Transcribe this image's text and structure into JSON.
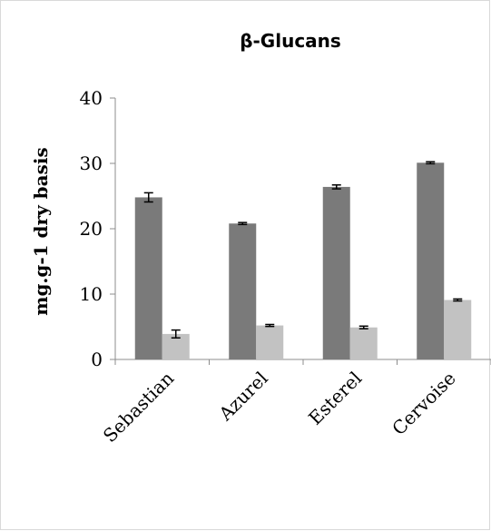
{
  "chart_data": {
    "type": "bar",
    "title": "β-Glucans",
    "xlabel": "",
    "ylabel": "mg.g-1 dry basis",
    "ylim": [
      0,
      40
    ],
    "yticks": [
      0,
      10,
      20,
      30,
      40
    ],
    "categories": [
      "Sebastian",
      "Azurel",
      "Esterel",
      "Cervoise"
    ],
    "series": [
      {
        "values": [
          24.8,
          20.8,
          26.4,
          30.1
        ],
        "errors": [
          0.7,
          0.15,
          0.3,
          0.15
        ],
        "color": "#7a7a7a"
      },
      {
        "values": [
          3.9,
          5.2,
          4.9,
          9.1
        ],
        "errors": [
          0.6,
          0.15,
          0.2,
          0.15
        ],
        "color": "#c2c2c2"
      }
    ],
    "grid": false,
    "legend": "none"
  }
}
